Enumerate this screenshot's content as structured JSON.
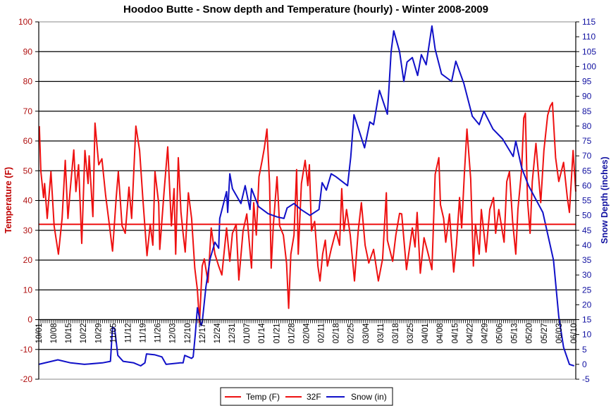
{
  "chart_data": {
    "type": "line",
    "title": "Hoodoo Butte - Snow depth and Temperature (hourly) - Winter 2008-2009",
    "ylabel": "Temperature (F)",
    "ylabel_right": "Snow Depth (inches)",
    "ylim": [
      -20,
      100
    ],
    "ylim_right": [
      -5,
      115
    ],
    "yticks": [
      -20,
      -10,
      0,
      10,
      20,
      30,
      40,
      50,
      60,
      70,
      80,
      90,
      100
    ],
    "yticks_right": [
      -5,
      0,
      5,
      10,
      15,
      20,
      25,
      30,
      35,
      40,
      45,
      50,
      55,
      60,
      65,
      70,
      75,
      80,
      85,
      90,
      95,
      100,
      105,
      110,
      115
    ],
    "x_range": [
      "10/01",
      "06/11"
    ],
    "xticks": [
      "10/01",
      "10/08",
      "10/15",
      "10/22",
      "10/29",
      "11/05",
      "11/12",
      "11/19",
      "11/26",
      "12/03",
      "12/10",
      "12/17",
      "12/24",
      "12/31",
      "01/07",
      "01/14",
      "01/21",
      "01/28",
      "02/04",
      "02/11",
      "02/18",
      "02/25",
      "03/04",
      "03/11",
      "03/18",
      "03/25",
      "04/01",
      "04/08",
      "04/15",
      "04/22",
      "04/29",
      "05/06",
      "05/13",
      "05/20",
      "05/27",
      "06/03",
      "06/10"
    ],
    "grid": "horizontal",
    "legend_placement": "bottom",
    "colors": {
      "temp": "#ee1111",
      "freezing": "#ee1111",
      "snow": "#1010c8",
      "left_axis": "#b01010",
      "right_axis": "#1010a0"
    },
    "series": [
      {
        "name": "Temp (F)",
        "axis": "left",
        "points": [
          [
            "10/01 06",
            65
          ],
          [
            "10/02 00",
            49.7
          ],
          [
            "10/03 06",
            41
          ],
          [
            "10/03 18",
            45.7
          ],
          [
            "10/05 00",
            34
          ],
          [
            "10/06 18",
            49.7
          ],
          [
            "10/08 06",
            31.5
          ],
          [
            "10/10 06",
            22
          ],
          [
            "10/12 00",
            34
          ],
          [
            "10/13 12",
            53.5
          ],
          [
            "10/14 18",
            34
          ],
          [
            "10/15 18",
            43
          ],
          [
            "10/17 12",
            57
          ],
          [
            "10/18 12",
            43
          ],
          [
            "10/19 18",
            52
          ],
          [
            "10/21 06",
            25.6
          ],
          [
            "10/22 18",
            56.8
          ],
          [
            "10/24 06",
            45.7
          ],
          [
            "10/24 18",
            55
          ],
          [
            "10/26 12",
            34.6
          ],
          [
            "10/27 12",
            66
          ],
          [
            "10/29 06",
            52
          ],
          [
            "10/30 18",
            54
          ],
          [
            "11/01 12",
            41.7
          ],
          [
            "11/03 06",
            32
          ],
          [
            "11/04 18",
            23
          ],
          [
            "11/06 12",
            41
          ],
          [
            "11/07 12",
            49.7
          ],
          [
            "11/09 06",
            31.5
          ],
          [
            "11/10 18",
            29
          ],
          [
            "11/12 12",
            44.5
          ],
          [
            "11/13 18",
            34
          ],
          [
            "11/15 18",
            65
          ],
          [
            "11/17 12",
            56.8
          ],
          [
            "11/19 00",
            41
          ],
          [
            "11/21 00",
            21.5
          ],
          [
            "11/22 12",
            32
          ],
          [
            "11/23 18",
            25
          ],
          [
            "11/24 18",
            49.7
          ],
          [
            "11/26 12",
            39
          ],
          [
            "11/27 00",
            23.6
          ],
          [
            "11/29 00",
            42.6
          ],
          [
            "11/30 18",
            58
          ],
          [
            "12/02 12",
            31.5
          ],
          [
            "12/03 18",
            44
          ],
          [
            "12/04 12",
            22
          ],
          [
            "12/05 18",
            54.4
          ],
          [
            "12/07 00",
            36
          ],
          [
            "12/08 00",
            29
          ],
          [
            "12/09 00",
            22.7
          ],
          [
            "12/10 12",
            42.6
          ],
          [
            "12/12 00",
            34
          ],
          [
            "12/13 12",
            17.3
          ],
          [
            "12/14 18",
            10
          ],
          [
            "12/15 18",
            -1
          ],
          [
            "12/17 00",
            18
          ],
          [
            "12/18 00",
            20.4
          ],
          [
            "12/19 18",
            12.5
          ],
          [
            "12/21 06",
            30.8
          ],
          [
            "12/23 00",
            22
          ],
          [
            "12/24 18",
            18
          ],
          [
            "12/26 06",
            15
          ],
          [
            "12/28 12",
            30.8
          ],
          [
            "12/30 00",
            19.6
          ],
          [
            "12/31 06",
            29
          ],
          [
            "01/02 00",
            32
          ],
          [
            "01/03 06",
            13.3
          ],
          [
            "01/05 06",
            29.8
          ],
          [
            "01/07 00",
            35.5
          ],
          [
            "01/09 06",
            17.3
          ],
          [
            "01/10 06",
            39.3
          ],
          [
            "01/11 12",
            28.4
          ],
          [
            "01/12 18",
            48
          ],
          [
            "01/14 06",
            53.5
          ],
          [
            "01/15 06",
            57.5
          ],
          [
            "01/16 12",
            64
          ],
          [
            "01/17 18",
            45.7
          ],
          [
            "01/18 12",
            17.3
          ],
          [
            "01/19 12",
            31.5
          ],
          [
            "01/21 06",
            48
          ],
          [
            "01/22 12",
            31.5
          ],
          [
            "01/24 06",
            28.4
          ],
          [
            "01/25 18",
            19
          ],
          [
            "01/26 18",
            3.8
          ],
          [
            "01/27 18",
            22
          ],
          [
            "01/29 06",
            28.4
          ],
          [
            "01/30 12",
            50.4
          ],
          [
            "01/31 06",
            22
          ],
          [
            "02/01 18",
            45.7
          ],
          [
            "02/03 12",
            53.5
          ],
          [
            "02/04 18",
            45
          ],
          [
            "02/05 12",
            52
          ],
          [
            "02/06 12",
            29.8
          ],
          [
            "02/08 00",
            33
          ],
          [
            "02/09 12",
            18
          ],
          [
            "02/10 12",
            13
          ],
          [
            "02/11 18",
            22
          ],
          [
            "02/13 00",
            26.7
          ],
          [
            "02/14 00",
            18
          ],
          [
            "02/15 18",
            23.6
          ],
          [
            "02/18 00",
            29.8
          ],
          [
            "02/19 18",
            25
          ],
          [
            "02/20 18",
            44
          ],
          [
            "02/21 18",
            29.8
          ],
          [
            "02/23 00",
            37
          ],
          [
            "02/24 18",
            28.4
          ],
          [
            "02/26 18",
            13
          ],
          [
            "02/28 12",
            29.8
          ],
          [
            "03/02 00",
            39.3
          ],
          [
            "03/03 18",
            25
          ],
          [
            "03/05 12",
            19
          ],
          [
            "03/07 18",
            23.6
          ],
          [
            "03/10 00",
            13
          ],
          [
            "03/12 00",
            20.4
          ],
          [
            "03/13 18",
            42.6
          ],
          [
            "03/14 06",
            26.7
          ],
          [
            "03/16 18",
            19.6
          ],
          [
            "03/18 06",
            28.4
          ],
          [
            "03/20 00",
            35.7
          ],
          [
            "03/21 00",
            35.5
          ],
          [
            "03/23 06",
            16.8
          ],
          [
            "03/26 00",
            30.8
          ],
          [
            "03/27 06",
            24.4
          ],
          [
            "03/28 06",
            36
          ],
          [
            "03/29 18",
            15.6
          ],
          [
            "03/31 12",
            27.5
          ],
          [
            "04/02 12",
            22
          ],
          [
            "04/04 06",
            16.8
          ],
          [
            "04/05 18",
            48.8
          ],
          [
            "04/07 12",
            54.4
          ],
          [
            "04/08 06",
            38.6
          ],
          [
            "04/09 18",
            34
          ],
          [
            "04/10 18",
            26
          ],
          [
            "04/12 12",
            35.5
          ],
          [
            "04/14 12",
            16
          ],
          [
            "04/15 18",
            25
          ],
          [
            "04/17 06",
            41
          ],
          [
            "04/18 06",
            30.8
          ],
          [
            "04/19 12",
            48.8
          ],
          [
            "04/20 18",
            64
          ],
          [
            "04/22 12",
            47.3
          ],
          [
            "04/23 18",
            18
          ],
          [
            "04/24 18",
            32
          ],
          [
            "04/26 12",
            22
          ],
          [
            "04/27 12",
            37
          ],
          [
            "04/29 18",
            22.7
          ],
          [
            "05/01 12",
            37
          ],
          [
            "05/03 06",
            41
          ],
          [
            "05/04 06",
            29
          ],
          [
            "05/05 18",
            37
          ],
          [
            "05/08 06",
            26
          ],
          [
            "05/09 12",
            46.4
          ],
          [
            "05/10 18",
            49.7
          ],
          [
            "05/12 06",
            33
          ],
          [
            "05/13 18",
            22
          ],
          [
            "05/14 18",
            37
          ],
          [
            "05/16 12",
            50.4
          ],
          [
            "05/17 12",
            67.7
          ],
          [
            "05/18 06",
            69.3
          ],
          [
            "05/19 06",
            40.2
          ],
          [
            "05/20 12",
            29
          ],
          [
            "05/21 12",
            46.4
          ],
          [
            "05/23 06",
            59.2
          ],
          [
            "05/25 12",
            39.3
          ],
          [
            "05/27 00",
            56.8
          ],
          [
            "05/28 18",
            68.6
          ],
          [
            "05/30 00",
            71.7
          ],
          [
            "05/31 00",
            72.9
          ],
          [
            "06/01 12",
            54.4
          ],
          [
            "06/03 00",
            46.4
          ],
          [
            "06/05 06",
            52.8
          ],
          [
            "06/07 00",
            41
          ],
          [
            "06/08 00",
            36
          ],
          [
            "06/09 18",
            56.8
          ],
          [
            "06/11 00",
            43
          ]
        ]
      },
      {
        "name": "32F",
        "axis": "left",
        "points": [
          [
            "10/01 00",
            32
          ],
          [
            "06/11 00",
            32
          ]
        ]
      },
      {
        "name": "Snow (in)",
        "axis": "right",
        "points": [
          [
            "10/01 00",
            0
          ],
          [
            "10/10 00",
            1.5
          ],
          [
            "10/16 00",
            0.5
          ],
          [
            "10/22 12",
            0
          ],
          [
            "10/31 00",
            0.5
          ],
          [
            "11/03 18",
            1
          ],
          [
            "11/04 18",
            12.5
          ],
          [
            "11/05 18",
            12
          ],
          [
            "11/07 06",
            3
          ],
          [
            "11/09 18",
            1
          ],
          [
            "11/14 18",
            0.5
          ],
          [
            "11/18 00",
            -0.5
          ],
          [
            "11/20 00",
            0.5
          ],
          [
            "11/20 18",
            3.5
          ],
          [
            "11/24 18",
            3.2
          ],
          [
            "11/28 00",
            2.5
          ],
          [
            "11/30 00",
            0
          ],
          [
            "12/06 12",
            0.5
          ],
          [
            "12/08 00",
            0.5
          ],
          [
            "12/08 18",
            3
          ],
          [
            "12/12 00",
            2
          ],
          [
            "12/12 18",
            2.5
          ],
          [
            "12/13 18",
            10
          ],
          [
            "12/14 18",
            19
          ],
          [
            "12/16 12",
            13
          ],
          [
            "12/17 00",
            14
          ],
          [
            "12/18 18",
            26
          ],
          [
            "12/20 18",
            35.5
          ],
          [
            "12/23 00",
            41
          ],
          [
            "12/24 18",
            39
          ],
          [
            "12/25 06",
            49
          ],
          [
            "12/28 12",
            58
          ],
          [
            "12/29 00",
            51
          ],
          [
            "12/30 00",
            64
          ],
          [
            "12/31 06",
            59
          ],
          [
            "01/04 06",
            54
          ],
          [
            "01/06 06",
            60
          ],
          [
            "01/08 12",
            52
          ],
          [
            "01/09 06",
            59
          ],
          [
            "01/12 12",
            53
          ],
          [
            "01/17 00",
            50.6
          ],
          [
            "01/21 06",
            49.5
          ],
          [
            "01/24 12",
            49
          ],
          [
            "01/26 00",
            52.5
          ],
          [
            "01/29 06",
            54
          ],
          [
            "02/01 12",
            52
          ],
          [
            "02/05 18",
            50
          ],
          [
            "02/10 00",
            52
          ],
          [
            "02/11 12",
            61
          ],
          [
            "02/13 12",
            58.5
          ],
          [
            "02/15 18",
            64
          ],
          [
            "02/18 00",
            63
          ],
          [
            "02/23 12",
            60
          ],
          [
            "02/25 00",
            69.6
          ],
          [
            "02/26 12",
            83.8
          ],
          [
            "03/03 12",
            72.7
          ],
          [
            "03/06 00",
            81.4
          ],
          [
            "03/07 18",
            80.5
          ],
          [
            "03/10 12",
            92
          ],
          [
            "03/14 06",
            84
          ],
          [
            "03/16 00",
            105
          ],
          [
            "03/17 06",
            112
          ],
          [
            "03/20 00",
            105
          ],
          [
            "03/22 00",
            95
          ],
          [
            "03/23 12",
            101.5
          ],
          [
            "03/26 00",
            103
          ],
          [
            "03/28 12",
            97
          ],
          [
            "03/30 06",
            104
          ],
          [
            "04/01 12",
            100.6
          ],
          [
            "04/04 06",
            113.6
          ],
          [
            "04/05 18",
            105.8
          ],
          [
            "04/08 18",
            97.5
          ],
          [
            "04/13 12",
            95
          ],
          [
            "04/15 12",
            101.8
          ],
          [
            "04/19 06",
            94.4
          ],
          [
            "04/23 06",
            83.3
          ],
          [
            "04/26 12",
            80.5
          ],
          [
            "04/28 18",
            85
          ],
          [
            "05/03 00",
            79
          ],
          [
            "05/07 12",
            75.7
          ],
          [
            "05/12 12",
            69.8
          ],
          [
            "05/13 18",
            75
          ],
          [
            "05/16 12",
            66
          ],
          [
            "05/19 18",
            60
          ],
          [
            "05/26 12",
            51
          ],
          [
            "05/31 12",
            35
          ],
          [
            "06/03 00",
            16
          ],
          [
            "06/05 06",
            5.7
          ],
          [
            "06/08 00",
            0
          ],
          [
            "06/10 06",
            -0.5
          ]
        ]
      }
    ]
  }
}
